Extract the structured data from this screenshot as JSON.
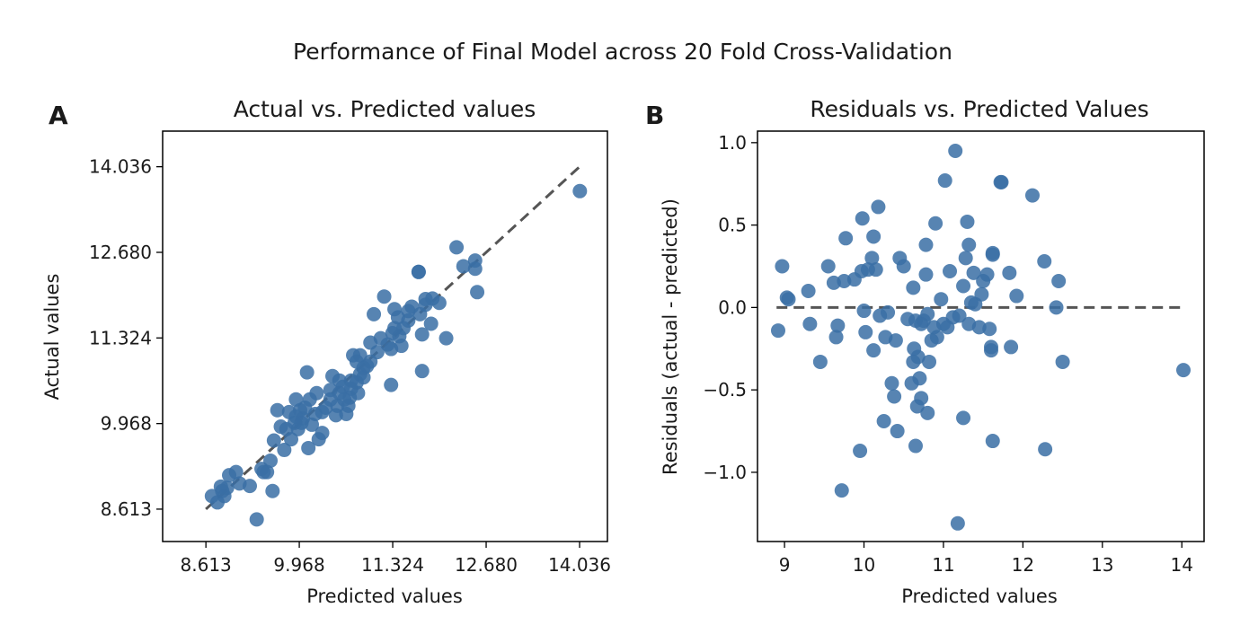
{
  "figure": {
    "title": "Performance of Final Model across 20 Fold Cross-Validation"
  },
  "colors": {
    "point": "#3a6ea5",
    "reference_line": "#555555"
  },
  "chart_data": [
    {
      "panel_label": "A",
      "type": "scatter",
      "title": "Actual vs. Predicted values",
      "xlabel": "Predicted values",
      "ylabel": "Actual values",
      "xlim": [
        7.985,
        14.44
      ],
      "ylim": [
        8.1,
        14.6
      ],
      "xticks": [
        8.613,
        9.968,
        11.324,
        12.68,
        14.036
      ],
      "xtick_labels": [
        "8.613",
        "9.968",
        "11.324",
        "12.680",
        "14.036"
      ],
      "yticks": [
        8.613,
        9.968,
        11.324,
        12.68,
        14.036
      ],
      "ytick_labels": [
        "8.613",
        "9.968",
        "11.324",
        "12.680",
        "14.036"
      ],
      "reference_line": {
        "style": "dashed",
        "from": [
          8.613,
          8.613
        ],
        "to": [
          14.036,
          14.036
        ]
      },
      "grid": false,
      "points": [
        [
          14.04,
          13.65
        ],
        [
          12.55,
          12.05
        ],
        [
          12.52,
          12.42
        ],
        [
          12.52,
          12.55
        ],
        [
          12.35,
          12.46
        ],
        [
          12.25,
          12.76
        ],
        [
          12.0,
          11.88
        ],
        [
          12.1,
          11.32
        ],
        [
          11.9,
          11.95
        ],
        [
          11.88,
          11.55
        ],
        [
          11.7,
          12.37
        ],
        [
          11.7,
          12.37
        ],
        [
          11.8,
          11.94
        ],
        [
          11.8,
          11.85
        ],
        [
          11.75,
          11.38
        ],
        [
          11.72,
          11.7
        ],
        [
          11.75,
          10.8
        ],
        [
          11.6,
          11.82
        ],
        [
          11.55,
          11.75
        ],
        [
          11.55,
          11.6
        ],
        [
          11.48,
          11.48
        ],
        [
          11.45,
          11.2
        ],
        [
          11.42,
          11.35
        ],
        [
          11.4,
          11.65
        ],
        [
          11.35,
          11.78
        ],
        [
          11.35,
          11.48
        ],
        [
          11.32,
          11.4
        ],
        [
          11.3,
          11.15
        ],
        [
          11.3,
          10.58
        ],
        [
          11.25,
          11.22
        ],
        [
          11.2,
          11.98
        ],
        [
          11.15,
          11.32
        ],
        [
          11.1,
          11.1
        ],
        [
          11.05,
          11.7
        ],
        [
          11.0,
          10.95
        ],
        [
          11.0,
          11.25
        ],
        [
          10.95,
          10.88
        ],
        [
          10.9,
          10.85
        ],
        [
          10.9,
          10.7
        ],
        [
          10.85,
          11.05
        ],
        [
          10.85,
          10.75
        ],
        [
          10.8,
          10.62
        ],
        [
          10.82,
          10.45
        ],
        [
          10.8,
          10.95
        ],
        [
          10.75,
          11.05
        ],
        [
          10.72,
          10.65
        ],
        [
          10.72,
          10.52
        ],
        [
          10.7,
          10.38
        ],
        [
          10.68,
          10.25
        ],
        [
          10.65,
          10.12
        ],
        [
          10.62,
          10.35
        ],
        [
          10.6,
          10.55
        ],
        [
          10.55,
          10.65
        ],
        [
          10.55,
          10.45
        ],
        [
          10.52,
          10.25
        ],
        [
          10.5,
          10.1
        ],
        [
          10.45,
          10.72
        ],
        [
          10.42,
          10.5
        ],
        [
          10.42,
          10.35
        ],
        [
          10.35,
          10.22
        ],
        [
          10.3,
          10.15
        ],
        [
          10.3,
          9.82
        ],
        [
          10.25,
          9.72
        ],
        [
          10.22,
          10.45
        ],
        [
          10.2,
          10.12
        ],
        [
          10.15,
          9.95
        ],
        [
          10.12,
          10.35
        ],
        [
          10.1,
          9.58
        ],
        [
          10.08,
          10.78
        ],
        [
          10.05,
          10.22
        ],
        [
          10.02,
          10.05
        ],
        [
          10.0,
          9.98
        ],
        [
          9.98,
          10.18
        ],
        [
          9.95,
          9.88
        ],
        [
          9.92,
          10.35
        ],
        [
          9.92,
          10.08
        ],
        [
          9.9,
          9.98
        ],
        [
          9.85,
          9.72
        ],
        [
          9.82,
          10.15
        ],
        [
          9.78,
          9.88
        ],
        [
          9.75,
          9.55
        ],
        [
          9.7,
          9.92
        ],
        [
          9.65,
          10.18
        ],
        [
          9.6,
          9.7
        ],
        [
          9.58,
          8.9
        ],
        [
          9.55,
          9.38
        ],
        [
          9.5,
          9.2
        ],
        [
          9.45,
          9.2
        ],
        [
          9.42,
          9.25
        ],
        [
          9.35,
          8.45
        ],
        [
          9.25,
          8.98
        ],
        [
          9.1,
          9.02
        ],
        [
          9.05,
          9.2
        ],
        [
          8.95,
          9.15
        ],
        [
          8.92,
          8.95
        ],
        [
          8.88,
          8.82
        ],
        [
          8.85,
          8.9
        ],
        [
          8.83,
          8.97
        ],
        [
          8.78,
          8.72
        ],
        [
          8.7,
          8.82
        ]
      ]
    },
    {
      "panel_label": "B",
      "type": "scatter",
      "title": "Residuals vs. Predicted Values",
      "xlabel": "Predicted values",
      "ylabel": "Residuals (actual - predicted)",
      "xlim": [
        8.66,
        14.28
      ],
      "ylim": [
        -1.42,
        1.07
      ],
      "xticks": [
        9,
        10,
        11,
        12,
        13,
        14
      ],
      "xtick_labels": [
        "9",
        "10",
        "11",
        "12",
        "13",
        "14"
      ],
      "yticks": [
        -1.0,
        -0.5,
        0.0,
        0.5,
        1.0
      ],
      "ytick_labels": [
        "−1.0",
        "−0.5",
        "0.0",
        "0.5",
        "1.0"
      ],
      "reference_line": {
        "style": "dashed",
        "from": [
          8.9,
          0.0
        ],
        "to": [
          14.0,
          0.0
        ]
      },
      "grid": false,
      "points": [
        [
          8.92,
          -0.14
        ],
        [
          8.97,
          0.25
        ],
        [
          9.03,
          0.06
        ],
        [
          9.05,
          0.05
        ],
        [
          9.3,
          0.1
        ],
        [
          9.32,
          -0.1
        ],
        [
          9.45,
          -0.33
        ],
        [
          9.55,
          0.25
        ],
        [
          9.62,
          0.15
        ],
        [
          9.65,
          -0.18
        ],
        [
          9.67,
          -0.11
        ],
        [
          9.72,
          -1.11
        ],
        [
          9.75,
          0.16
        ],
        [
          9.77,
          0.42
        ],
        [
          9.88,
          0.17
        ],
        [
          9.95,
          -0.87
        ],
        [
          9.97,
          0.22
        ],
        [
          9.98,
          0.54
        ],
        [
          10.0,
          -0.02
        ],
        [
          10.02,
          -0.15
        ],
        [
          10.05,
          0.23
        ],
        [
          10.1,
          0.3
        ],
        [
          10.12,
          0.43
        ],
        [
          10.12,
          -0.26
        ],
        [
          10.15,
          0.23
        ],
        [
          10.18,
          0.61
        ],
        [
          10.2,
          -0.05
        ],
        [
          10.25,
          -0.69
        ],
        [
          10.27,
          -0.18
        ],
        [
          10.3,
          -0.03
        ],
        [
          10.35,
          -0.46
        ],
        [
          10.38,
          -0.54
        ],
        [
          10.4,
          -0.2
        ],
        [
          10.42,
          -0.75
        ],
        [
          10.45,
          0.3
        ],
        [
          10.5,
          0.25
        ],
        [
          10.55,
          -0.07
        ],
        [
          10.6,
          -0.46
        ],
        [
          10.62,
          -0.33
        ],
        [
          10.62,
          0.12
        ],
        [
          10.63,
          -0.25
        ],
        [
          10.65,
          -0.08
        ],
        [
          10.65,
          -0.84
        ],
        [
          10.67,
          -0.6
        ],
        [
          10.68,
          -0.3
        ],
        [
          10.7,
          -0.43
        ],
        [
          10.72,
          -0.1
        ],
        [
          10.72,
          -0.55
        ],
        [
          10.75,
          -0.08
        ],
        [
          10.78,
          0.38
        ],
        [
          10.78,
          0.2
        ],
        [
          10.8,
          -0.04
        ],
        [
          10.8,
          -0.64
        ],
        [
          10.82,
          -0.33
        ],
        [
          10.85,
          -0.2
        ],
        [
          10.88,
          -0.12
        ],
        [
          10.9,
          0.51
        ],
        [
          10.92,
          -0.18
        ],
        [
          10.97,
          0.05
        ],
        [
          11.0,
          -0.1
        ],
        [
          11.02,
          0.77
        ],
        [
          11.05,
          -0.12
        ],
        [
          11.08,
          0.22
        ],
        [
          11.12,
          -0.06
        ],
        [
          11.15,
          0.95
        ],
        [
          11.18,
          -1.31
        ],
        [
          11.2,
          -0.05
        ],
        [
          11.25,
          0.13
        ],
        [
          11.25,
          -0.67
        ],
        [
          11.28,
          0.3
        ],
        [
          11.3,
          0.52
        ],
        [
          11.32,
          -0.1
        ],
        [
          11.32,
          0.38
        ],
        [
          11.35,
          0.03
        ],
        [
          11.38,
          0.21
        ],
        [
          11.4,
          0.02
        ],
        [
          11.45,
          -0.12
        ],
        [
          11.48,
          0.08
        ],
        [
          11.5,
          0.16
        ],
        [
          11.55,
          0.2
        ],
        [
          11.58,
          -0.13
        ],
        [
          11.6,
          -0.24
        ],
        [
          11.6,
          -0.26
        ],
        [
          11.62,
          0.33
        ],
        [
          11.62,
          0.32
        ],
        [
          11.62,
          -0.81
        ],
        [
          11.72,
          0.76
        ],
        [
          11.73,
          0.76
        ],
        [
          11.83,
          0.21
        ],
        [
          11.85,
          -0.24
        ],
        [
          11.92,
          0.07
        ],
        [
          12.12,
          0.68
        ],
        [
          12.27,
          0.28
        ],
        [
          12.28,
          -0.86
        ],
        [
          12.42,
          0.0
        ],
        [
          12.45,
          0.16
        ],
        [
          12.5,
          -0.33
        ],
        [
          14.02,
          -0.38
        ]
      ]
    }
  ]
}
